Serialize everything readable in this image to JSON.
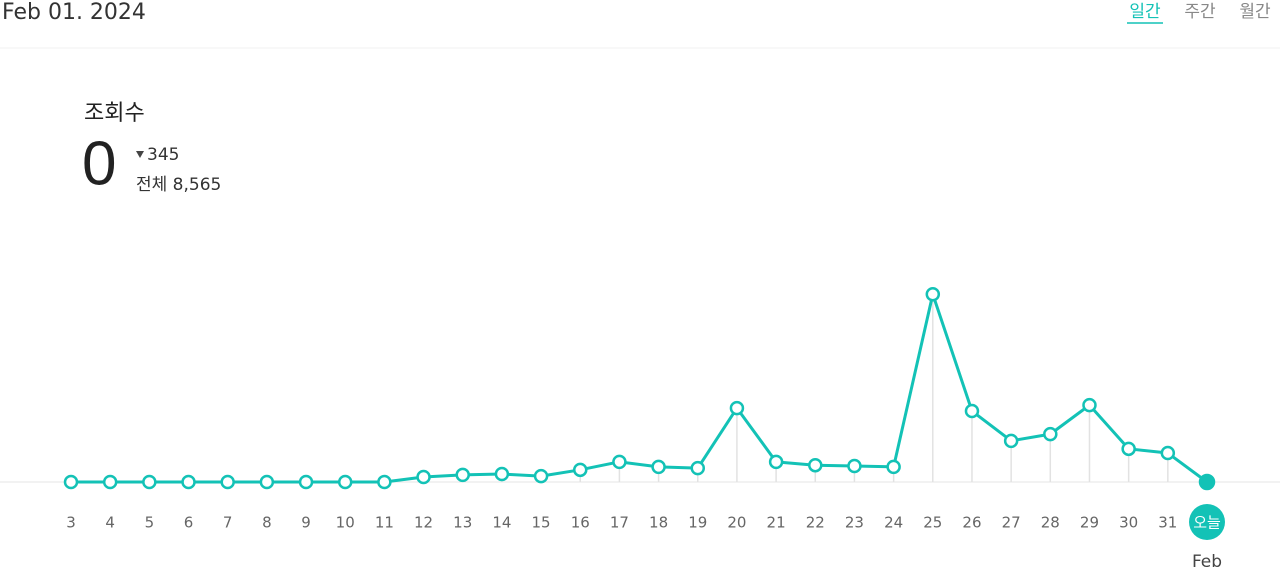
{
  "header": {
    "date": "Feb 01. 2024",
    "tabs": [
      "일간",
      "주간",
      "월간"
    ],
    "active_tab": 0
  },
  "stats": {
    "label": "조회수",
    "today": "0",
    "change": "345",
    "total": "전체 8,565"
  },
  "chart_data": {
    "type": "line",
    "color": "#13c2b6",
    "categories": [
      "3",
      "4",
      "5",
      "6",
      "7",
      "8",
      "9",
      "10",
      "11",
      "12",
      "13",
      "14",
      "15",
      "16",
      "17",
      "18",
      "19",
      "20",
      "21",
      "22",
      "23",
      "24",
      "25",
      "26",
      "27",
      "28",
      "29",
      "30",
      "31",
      "오늘"
    ],
    "month_label": "Feb",
    "values": [
      0,
      0,
      0,
      0,
      0,
      0,
      0,
      0,
      0,
      60,
      85,
      95,
      70,
      145,
      240,
      180,
      165,
      880,
      240,
      200,
      190,
      180,
      2235,
      845,
      490,
      570,
      915,
      395,
      345,
      0
    ],
    "ylim": [
      0,
      2500
    ]
  }
}
